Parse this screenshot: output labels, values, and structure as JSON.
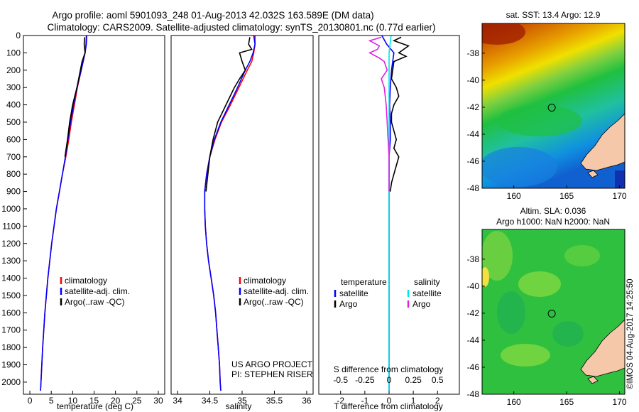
{
  "header": {
    "line1": "Argo profile: aoml 5901093_248 01-Aug-2013 42.032S 163.589E (DM data)",
    "line2": "Climatology: CARS2009. Satellite-adjusted climatology: synTS_20130801.nc (0.77d earlier)"
  },
  "depth_axis": {
    "ticks": [
      0,
      100,
      200,
      300,
      400,
      500,
      600,
      700,
      800,
      900,
      1000,
      1100,
      1200,
      1300,
      1400,
      1500,
      1600,
      1700,
      1800,
      1900,
      2000
    ],
    "range": [
      0,
      2070
    ]
  },
  "colors": {
    "climatology": "#ff0000",
    "satellite": "#0000ff",
    "argo": "#000000",
    "cyan": "#00e5e5",
    "magenta": "#e020e0",
    "land": "#f4c8a8"
  },
  "chart_data": [
    {
      "type": "line",
      "panel": "temperature",
      "xlabel": "temperature (deg C)",
      "xlim": [
        -1.5,
        31.5
      ],
      "xticks": [
        0,
        5,
        10,
        15,
        20,
        25,
        30
      ],
      "legend": [
        "climatology",
        "satellite-adj. clim.",
        "Argo(..raw -QC)"
      ],
      "series": [
        {
          "name": "climatology",
          "depth": [
            0,
            50,
            100,
            200,
            300,
            400,
            500,
            600,
            700,
            800,
            900,
            1000,
            1200,
            1400,
            1600,
            1800,
            2000,
            2050
          ],
          "values": [
            13.2,
            13.1,
            12.9,
            12.0,
            11.1,
            10.4,
            9.7,
            9.1,
            8.4,
            7.6,
            6.9,
            6.2,
            5.1,
            4.2,
            3.5,
            3.0,
            2.6,
            2.5
          ]
        },
        {
          "name": "satellite-adj. clim.",
          "depth": [
            0,
            50,
            100,
            200,
            300,
            400,
            500,
            600,
            700,
            800,
            900,
            1000,
            1200,
            1400,
            1600,
            1800,
            2000,
            2050
          ],
          "values": [
            13.3,
            13.2,
            12.9,
            12.0,
            11.0,
            10.2,
            9.5,
            8.9,
            8.3,
            7.6,
            6.9,
            6.2,
            5.1,
            4.2,
            3.5,
            3.0,
            2.6,
            2.5
          ]
        },
        {
          "name": "Argo(..raw -QC)",
          "depth": [
            10,
            50,
            100,
            150,
            200,
            300,
            400,
            500,
            600,
            700
          ],
          "values": [
            12.8,
            12.7,
            12.9,
            12.2,
            11.8,
            11.0,
            10.0,
            9.3,
            8.8,
            8.2
          ]
        }
      ]
    },
    {
      "type": "line",
      "panel": "salinity",
      "xlabel": "salinity",
      "xlim": [
        33.9,
        36.1
      ],
      "xticks": [
        34,
        34.5,
        35,
        35.5,
        36
      ],
      "legend": [
        "climatology",
        "satellite-adj. clim.",
        "Argo(..raw -QC)"
      ],
      "annotation": [
        "US ARGO PROJECT",
        "PI: STEPHEN RISER"
      ],
      "series": [
        {
          "name": "climatology",
          "depth": [
            0,
            50,
            100,
            150,
            200,
            300,
            400,
            500,
            600,
            700,
            800,
            900,
            1000,
            1100,
            1200,
            1300,
            1400,
            1500,
            1600,
            1700,
            1800,
            1900,
            2000,
            2050
          ],
          "values": [
            35.2,
            35.2,
            35.18,
            35.15,
            35.08,
            34.95,
            34.82,
            34.68,
            34.58,
            34.5,
            34.45,
            34.42,
            34.42,
            34.43,
            34.45,
            34.48,
            34.52,
            34.56,
            34.59,
            34.61,
            34.63,
            34.65,
            34.66,
            34.67
          ]
        },
        {
          "name": "satellite-adj. clim.",
          "depth": [
            0,
            50,
            100,
            150,
            200,
            300,
            400,
            500,
            600,
            700,
            800,
            900,
            1000,
            1100,
            1200,
            1300,
            1400,
            1500,
            1600,
            1700,
            1800,
            1900,
            2000,
            2050
          ],
          "values": [
            35.18,
            35.2,
            35.17,
            35.12,
            35.05,
            34.93,
            34.8,
            34.67,
            34.57,
            34.5,
            34.45,
            34.42,
            34.42,
            34.43,
            34.45,
            34.48,
            34.52,
            34.56,
            34.59,
            34.61,
            34.63,
            34.65,
            34.66,
            34.67
          ]
        },
        {
          "name": "Argo(..raw -QC)",
          "depth": [
            10,
            50,
            80,
            100,
            150,
            200,
            250,
            300,
            400,
            500,
            600,
            700,
            800,
            900
          ],
          "values": [
            35.12,
            35.1,
            35.15,
            34.96,
            35.0,
            35.05,
            34.96,
            34.88,
            34.75,
            34.62,
            34.55,
            34.5,
            34.47,
            34.44
          ]
        }
      ]
    },
    {
      "type": "line",
      "panel": "difference",
      "xlabel": "T difference from climatology",
      "xlabel_top": "S difference from climatology",
      "xlim": [
        -2.9,
        2.9
      ],
      "xticks": [
        -2,
        -1,
        0,
        1,
        2
      ],
      "xticks_top": [
        -0.5,
        -0.25,
        0,
        0.25,
        0.5
      ],
      "legend_titles": [
        "temperature",
        "salinity"
      ],
      "legend": [
        "satellite",
        "Argo",
        "satellite",
        "Argo"
      ],
      "series": [
        {
          "name": "temperature satellite",
          "depth": [
            0,
            50,
            100,
            200,
            300,
            400,
            500,
            600,
            700,
            800,
            1000,
            1200,
            1500,
            1800,
            2050
          ],
          "values": [
            -0.3,
            -0.1,
            0.2,
            0.1,
            0.05,
            0.02,
            0.05,
            0.05,
            0.0,
            0.0,
            0.0,
            0.0,
            0.0,
            0.0,
            0.0
          ]
        },
        {
          "name": "temperature Argo",
          "depth": [
            10,
            30,
            60,
            100,
            120,
            150,
            200,
            250,
            300,
            350,
            400,
            450,
            500,
            550,
            600,
            650,
            700,
            750,
            800,
            850,
            900
          ],
          "values": [
            0.5,
            0.2,
            0.8,
            0.4,
            0.7,
            0.2,
            0.15,
            0.1,
            0.3,
            0.4,
            0.2,
            0.1,
            0.1,
            0.2,
            0.3,
            0.2,
            0.4,
            0.3,
            0.2,
            0.1,
            0.05
          ]
        },
        {
          "name": "salinity satellite",
          "depth": [
            0,
            50,
            100,
            200,
            300,
            500,
            700,
            1000,
            1500,
            2050
          ],
          "values": [
            0.02,
            0.01,
            0.0,
            0.0,
            0.0,
            0.0,
            0.0,
            0.0,
            0.0,
            0.0
          ]
        },
        {
          "name": "salinity Argo",
          "depth": [
            10,
            30,
            60,
            80,
            100,
            130,
            150,
            200,
            250,
            300,
            400,
            500,
            600,
            700,
            800,
            900
          ],
          "values": [
            -0.08,
            -0.2,
            -0.1,
            -0.12,
            -0.2,
            -0.1,
            -0.05,
            -0.02,
            -0.08,
            -0.05,
            -0.03,
            -0.02,
            -0.01,
            0.0,
            0.0,
            0.0
          ]
        }
      ]
    }
  ],
  "maps": [
    {
      "title": "sat. SST: 13.4 Argo: 12.9",
      "xlim": [
        157,
        170.5
      ],
      "ylim": [
        -48,
        -35.8
      ],
      "xticks": [
        160,
        165,
        170
      ],
      "yticks": [
        -38,
        -40,
        -42,
        -44,
        -46,
        -48
      ],
      "marker": {
        "lon": 163.589,
        "lat": -42.032
      }
    },
    {
      "title": "Altim. SLA: 0.036",
      "title2": "Argo h1000: NaN h2000: NaN",
      "xlim": [
        157,
        170.5
      ],
      "ylim": [
        -48,
        -35.8
      ],
      "xticks": [
        160,
        165,
        170
      ],
      "yticks": [
        -38,
        -40,
        -42,
        -44,
        -46,
        -48
      ],
      "marker": {
        "lon": 163.589,
        "lat": -42.032
      },
      "stamp": "©IMOS 04-Aug-2017 14:25:50"
    }
  ]
}
